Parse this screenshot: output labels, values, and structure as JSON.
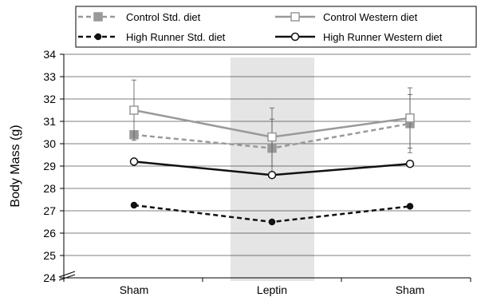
{
  "chart_data": {
    "type": "line",
    "categories": [
      "Sham",
      "Leptin",
      "Sham"
    ],
    "ylabel": "Body Mass (g)",
    "ylim": [
      24,
      34
    ],
    "yticks": [
      24,
      25,
      26,
      27,
      28,
      29,
      30,
      31,
      32,
      33,
      34
    ],
    "axis_break": true,
    "grid": true,
    "highlight_category": 1,
    "highlight_color": "#e5e5e5",
    "legend_position": "top",
    "series": [
      {
        "name": "Control Std. diet",
        "values": [
          30.4,
          29.8,
          30.9
        ],
        "color": "#999999",
        "dash": true,
        "marker": "square-filled",
        "errors": [
          null,
          1.3,
          1.3
        ]
      },
      {
        "name": "Control Western diet",
        "values": [
          31.5,
          30.3,
          31.15
        ],
        "color": "#999999",
        "dash": false,
        "marker": "square-open",
        "errors": [
          1.35,
          1.3,
          1.35
        ]
      },
      {
        "name": "High Runner Std. diet",
        "values": [
          27.25,
          26.5,
          27.2
        ],
        "color": "#111111",
        "dash": true,
        "marker": "circle-filled",
        "errors": [
          null,
          null,
          null
        ]
      },
      {
        "name": "High Runner Western diet",
        "values": [
          29.2,
          28.6,
          29.1
        ],
        "color": "#111111",
        "dash": false,
        "marker": "circle-open",
        "errors": [
          null,
          null,
          null
        ]
      }
    ]
  }
}
